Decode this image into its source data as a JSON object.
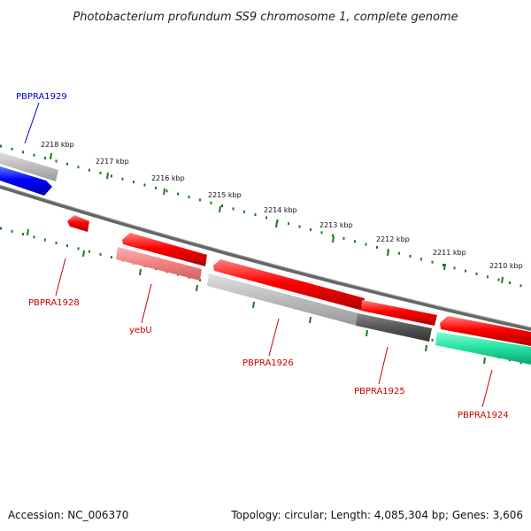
{
  "title": "Photobacterium profundum SS9 chromosome 1, complete genome",
  "footer": {
    "accession": "Accession: NC_006370",
    "summary": "Topology: circular; Length: 4,085,304 bp; Genes: 3,606"
  },
  "colors": {
    "backbone": "#777777",
    "tick": "#1a7a1a",
    "forward_gene": "#ff0000",
    "reverse_gene_label": "#cc0000",
    "highlight_label": "#0000cc",
    "forward_other": "#0000ff",
    "gray_light": "#bbbbbb",
    "gray_dark": "#555555",
    "pink": "#f08080",
    "green": "#22e0a0"
  },
  "scale": {
    "unit": "kbp",
    "positions": [
      2218,
      2217,
      2216,
      2215,
      2214,
      2213,
      2212,
      2211,
      2210
    ],
    "labels": [
      "2218 kbp",
      "2217 kbp",
      "2216 kbp",
      "2215 kbp",
      "2214 kbp",
      "2213 kbp",
      "2212 kbp",
      "2211 kbp",
      "2210 kbp"
    ]
  },
  "features": [
    {
      "strand": "outer",
      "color": "gray_light",
      "arrow": false
    },
    {
      "strand": "forward",
      "color": "forward_other",
      "arrow": true
    },
    {
      "strand": "reverse",
      "color": "forward_gene",
      "arrow": true
    },
    {
      "strand": "reverse",
      "color": "forward_gene",
      "arrow": true
    },
    {
      "strand": "reverse",
      "color": "pink",
      "arrow": false
    },
    {
      "strand": "reverse",
      "color": "forward_gene",
      "arrow": true
    },
    {
      "strand": "reverse",
      "color": "gray_light",
      "arrow": false
    },
    {
      "strand": "reverse",
      "color": "forward_gene",
      "arrow": true
    },
    {
      "strand": "reverse",
      "color": "gray_dark",
      "arrow": false
    },
    {
      "strand": "reverse",
      "color": "forward_gene",
      "arrow": true
    },
    {
      "strand": "reverse",
      "color": "green",
      "arrow": false
    }
  ],
  "gene_labels": [
    {
      "name": "PBPRA1929",
      "color": "highlight_label"
    },
    {
      "name": "PBPRA1928",
      "color": "reverse_gene_label"
    },
    {
      "name": "yebU",
      "color": "reverse_gene_label"
    },
    {
      "name": "PBPRA1926",
      "color": "reverse_gene_label"
    },
    {
      "name": "PBPRA1925",
      "color": "reverse_gene_label"
    },
    {
      "name": "PBPRA1924",
      "color": "reverse_gene_label"
    }
  ]
}
